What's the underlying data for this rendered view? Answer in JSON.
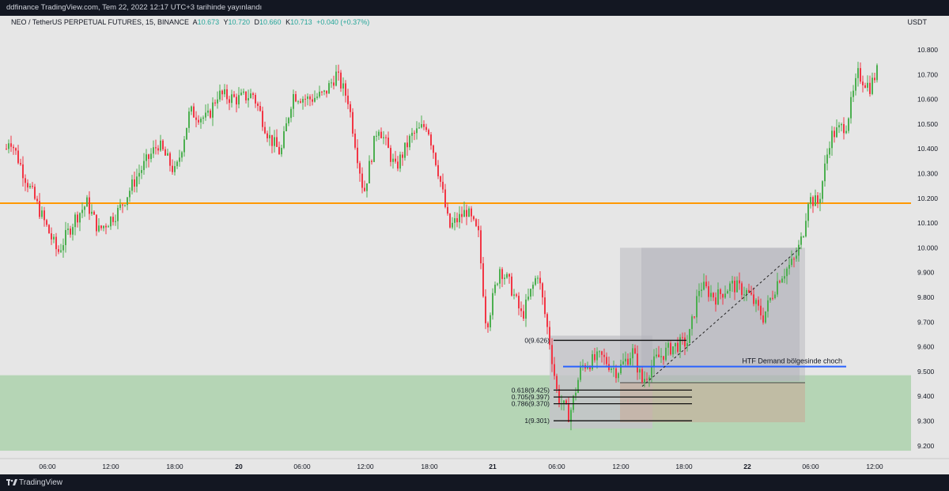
{
  "header": {
    "publish_text": "ddfinance TradingView.com, Tem 22, 2022 12:17 UTC+3 tarihinde yayınlandı"
  },
  "legend": {
    "symbol": "NEO / TetherUS PERPETUAL FUTURES, 15, BINANCE",
    "open_label": "A",
    "open": "10.673",
    "high_label": "Y",
    "high": "10.720",
    "low_label": "D",
    "low": "10.660",
    "close_label": "K",
    "close": "10.713",
    "change": "+0.040 (+0.37%)"
  },
  "price_axis": {
    "currency": "USDT"
  },
  "footer": {
    "brand": "TradingView"
  },
  "colors": {
    "up": "#4caf50",
    "down": "#f23645",
    "orange_line": "#ff9800",
    "demand_zone": "#b5d5b5",
    "blue_line": "#2962ff"
  },
  "annotations": {
    "htf_text": "HTF Demand bölgesinde choch",
    "fib_levels": [
      {
        "label": "0(9.626)",
        "price": 9.626
      },
      {
        "label": "0.618(9.425)",
        "price": 9.425
      },
      {
        "label": "0.705(9.397)",
        "price": 9.397
      },
      {
        "label": "0.786(9.370)",
        "price": 9.37
      },
      {
        "label": "1(9.301)",
        "price": 9.301
      }
    ],
    "orange_level": 10.18,
    "blue_level": 9.52,
    "demand_zone": [
      9.18,
      9.485
    ]
  },
  "chart_data": {
    "type": "candlestick",
    "symbol": "NEO / TetherUS PERPETUAL FUTURES",
    "interval": "15",
    "exchange": "BINANCE",
    "ylim": [
      9.15,
      10.85
    ],
    "y_ticks": [
      "10.800",
      "10.700",
      "10.600",
      "10.500",
      "10.400",
      "10.300",
      "10.200",
      "10.100",
      "10.000",
      "9.900",
      "9.800",
      "9.700",
      "9.600",
      "9.500",
      "9.400",
      "9.300",
      "9.200"
    ],
    "x_ticks": [
      "06:00",
      "12:00",
      "18:00",
      "20",
      "06:00",
      "12:00",
      "18:00",
      "21",
      "06:00",
      "12:00",
      "18:00",
      "22",
      "06:00",
      "12:00"
    ],
    "x_tick_bold": [
      false,
      false,
      false,
      true,
      false,
      false,
      false,
      true,
      false,
      false,
      false,
      true,
      false,
      false
    ],
    "price_path": [
      [
        0,
        10.3
      ],
      [
        12,
        10.45
      ],
      [
        30,
        10.3
      ],
      [
        50,
        10.15
      ],
      [
        73,
        9.98
      ],
      [
        95,
        10.12
      ],
      [
        110,
        10.18
      ],
      [
        125,
        10.07
      ],
      [
        150,
        10.15
      ],
      [
        175,
        10.3
      ],
      [
        200,
        10.42
      ],
      [
        222,
        10.3
      ],
      [
        240,
        10.55
      ],
      [
        262,
        10.52
      ],
      [
        275,
        10.62
      ],
      [
        300,
        10.6
      ],
      [
        320,
        10.62
      ],
      [
        340,
        10.45
      ],
      [
        355,
        10.38
      ],
      [
        370,
        10.62
      ],
      [
        390,
        10.6
      ],
      [
        410,
        10.62
      ],
      [
        425,
        10.7
      ],
      [
        440,
        10.6
      ],
      [
        460,
        10.22
      ],
      [
        478,
        10.5
      ],
      [
        500,
        10.32
      ],
      [
        520,
        10.45
      ],
      [
        540,
        10.5
      ],
      [
        555,
        10.3
      ],
      [
        568,
        10.08
      ],
      [
        590,
        10.15
      ],
      [
        605,
        10.05
      ],
      [
        615,
        9.68
      ],
      [
        632,
        9.92
      ],
      [
        645,
        9.85
      ],
      [
        660,
        9.72
      ],
      [
        680,
        9.9
      ],
      [
        695,
        9.62
      ],
      [
        705,
        9.4
      ],
      [
        720,
        9.32
      ],
      [
        735,
        9.52
      ],
      [
        760,
        9.56
      ],
      [
        780,
        9.5
      ],
      [
        800,
        9.58
      ],
      [
        812,
        9.46
      ],
      [
        830,
        9.55
      ],
      [
        850,
        9.6
      ],
      [
        870,
        9.62
      ],
      [
        885,
        9.85
      ],
      [
        905,
        9.8
      ],
      [
        925,
        9.85
      ],
      [
        945,
        9.82
      ],
      [
        965,
        9.72
      ],
      [
        985,
        9.88
      ],
      [
        1005,
        9.95
      ],
      [
        1015,
        10.05
      ],
      [
        1022,
        10.2
      ],
      [
        1035,
        10.18
      ],
      [
        1050,
        10.45
      ],
      [
        1070,
        10.5
      ],
      [
        1085,
        10.7
      ],
      [
        1100,
        10.65
      ],
      [
        1110,
        10.72
      ]
    ]
  }
}
